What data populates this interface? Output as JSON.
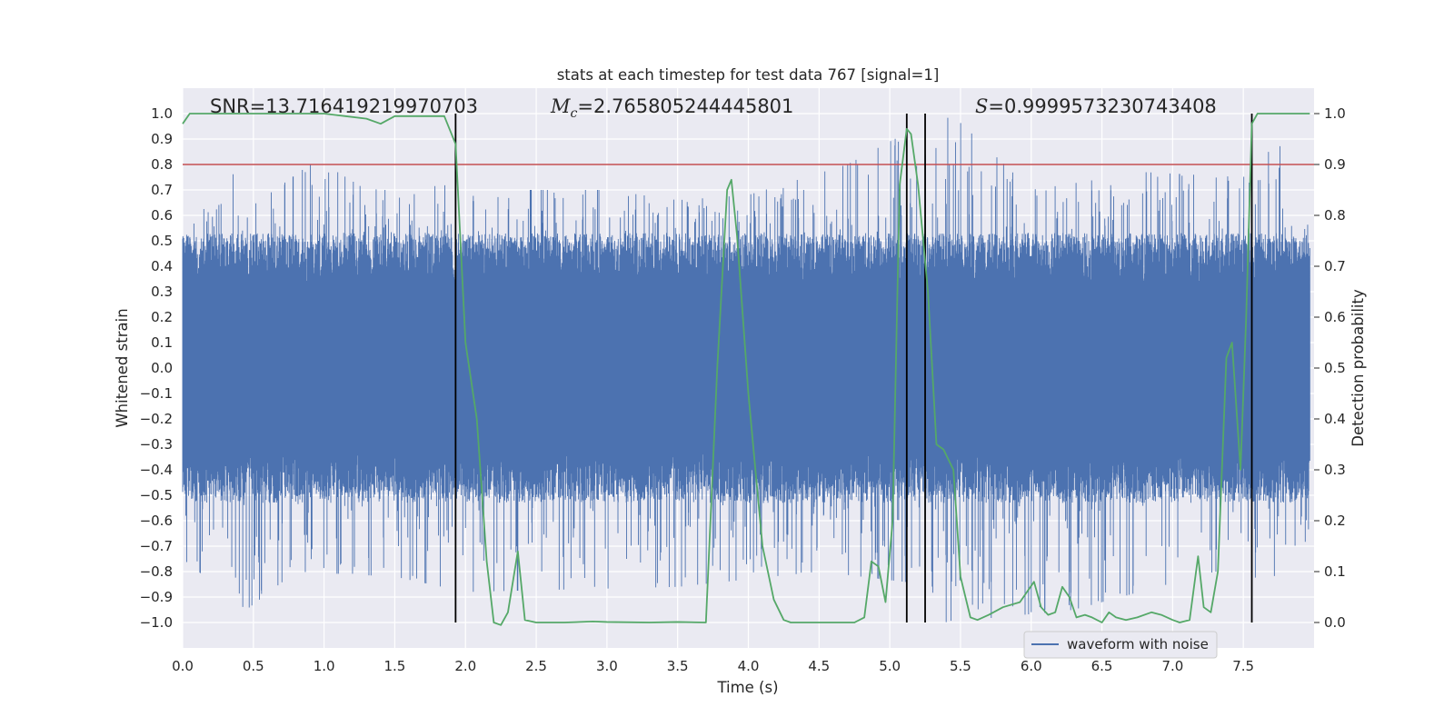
{
  "chart_data": {
    "type": "line",
    "title": "stats at each timestep for test data 767 [signal=1]",
    "xlabel": "Time (s)",
    "ylabel_left": "Whitened strain",
    "ylabel_right": "Detection probability",
    "xlim": [
      0.0,
      8.0
    ],
    "ylim_left": [
      -1.1,
      1.1
    ],
    "ylim_right": [
      -0.05,
      1.05
    ],
    "x_ticks": [
      "0.0",
      "0.5",
      "1.0",
      "1.5",
      "2.0",
      "2.5",
      "3.0",
      "3.5",
      "4.0",
      "4.5",
      "5.0",
      "5.5",
      "6.0",
      "6.5",
      "7.0",
      "7.5"
    ],
    "x_tick_values": [
      0,
      0.5,
      1,
      1.5,
      2,
      2.5,
      3,
      3.5,
      4,
      4.5,
      5,
      5.5,
      6,
      6.5,
      7,
      7.5
    ],
    "y_left_ticks": [
      "1.0",
      "0.9",
      "0.8",
      "0.7",
      "0.6",
      "0.5",
      "0.4",
      "0.3",
      "0.2",
      "0.1",
      "0.0",
      "−0.1",
      "−0.2",
      "−0.3",
      "−0.4",
      "−0.5",
      "−0.6",
      "−0.7",
      "−0.8",
      "−0.9",
      "−1.0"
    ],
    "y_left_tick_values": [
      1.0,
      0.9,
      0.8,
      0.7,
      0.6,
      0.5,
      0.4,
      0.3,
      0.2,
      0.1,
      0.0,
      -0.1,
      -0.2,
      -0.3,
      -0.4,
      -0.5,
      -0.6,
      -0.7,
      -0.8,
      -0.9,
      -1.0
    ],
    "y_right_ticks": [
      "1.0",
      "0.9",
      "0.8",
      "0.7",
      "0.6",
      "0.5",
      "0.4",
      "0.3",
      "0.2",
      "0.1",
      "0.0"
    ],
    "y_right_tick_values": [
      1.0,
      0.9,
      0.8,
      0.7,
      0.6,
      0.5,
      0.4,
      0.3,
      0.2,
      0.1,
      0.0
    ],
    "annotations": {
      "snr": "SNR=13.716419219970703",
      "mc_symbol": "M",
      "mc_sub": "c",
      "mc_value": "=2.765805244445801",
      "s_symbol": "S",
      "s_value": "=0.9999573230743408"
    },
    "legend": {
      "label": "waveform with noise",
      "placement": "lower-right"
    },
    "threshold": {
      "value_right": 0.9,
      "color": "#c44e52"
    },
    "vertical_markers_x": [
      1.93,
      5.12,
      5.25,
      7.56
    ],
    "series": [
      {
        "name": "waveform with noise",
        "color": "#4c72b0",
        "envelope_upper": [
          [
            0.0,
            0.6
          ],
          [
            0.3,
            0.65
          ],
          [
            0.32,
            0.9
          ],
          [
            0.45,
            0.62
          ],
          [
            0.95,
            0.82
          ],
          [
            1.3,
            0.7
          ],
          [
            1.9,
            0.72
          ],
          [
            2.05,
            0.7
          ],
          [
            3.0,
            0.7
          ],
          [
            3.5,
            0.66
          ],
          [
            4.0,
            0.68
          ],
          [
            4.7,
            0.8
          ],
          [
            5.2,
            0.95
          ],
          [
            5.45,
            0.99
          ],
          [
            6.0,
            0.7
          ],
          [
            6.8,
            0.77
          ],
          [
            7.5,
            0.75
          ],
          [
            7.75,
            0.89
          ],
          [
            7.9,
            0.6
          ],
          [
            7.97,
            0.6
          ]
        ],
        "envelope_lower": [
          [
            0.0,
            -0.75
          ],
          [
            0.45,
            -0.95
          ],
          [
            0.8,
            -0.8
          ],
          [
            1.5,
            -0.82
          ],
          [
            2.0,
            -0.88
          ],
          [
            3.5,
            -0.86
          ],
          [
            4.5,
            -0.8
          ],
          [
            5.25,
            -0.85
          ],
          [
            5.4,
            -1.0
          ],
          [
            6.3,
            -0.95
          ],
          [
            7.3,
            -0.8
          ],
          [
            7.9,
            -0.85
          ],
          [
            7.97,
            -0.6
          ]
        ]
      },
      {
        "name": "",
        "color": "#55a868",
        "axis": "right",
        "x": [
          0.0,
          0.05,
          0.2,
          0.5,
          1.0,
          1.3,
          1.4,
          1.5,
          1.7,
          1.85,
          1.93,
          2.0,
          2.08,
          2.15,
          2.2,
          2.25,
          2.3,
          2.37,
          2.42,
          2.5,
          2.7,
          2.9,
          3.0,
          3.3,
          3.5,
          3.7,
          3.78,
          3.85,
          3.88,
          3.92,
          4.0,
          4.1,
          4.18,
          4.25,
          4.3,
          4.5,
          4.75,
          4.82,
          4.87,
          4.92,
          4.97,
          5.02,
          5.07,
          5.12,
          5.15,
          5.2,
          5.27,
          5.33,
          5.38,
          5.45,
          5.5,
          5.57,
          5.62,
          5.7,
          5.8,
          5.92,
          6.02,
          6.07,
          6.12,
          6.17,
          6.22,
          6.27,
          6.32,
          6.38,
          6.43,
          6.5,
          6.55,
          6.6,
          6.67,
          6.75,
          6.85,
          6.92,
          7.0,
          7.05,
          7.12,
          7.18,
          7.22,
          7.27,
          7.32,
          7.38,
          7.42,
          7.48,
          7.52,
          7.56,
          7.6,
          7.65,
          7.72,
          7.97
        ],
        "y": [
          0.98,
          1.0,
          1.0,
          1.0,
          1.0,
          0.99,
          0.98,
          0.995,
          0.995,
          0.995,
          0.94,
          0.55,
          0.4,
          0.12,
          0.0,
          -0.005,
          0.02,
          0.14,
          0.005,
          0.0,
          0.0,
          0.002,
          0.001,
          0.0,
          0.001,
          0.0,
          0.5,
          0.85,
          0.87,
          0.76,
          0.45,
          0.15,
          0.045,
          0.005,
          0.0,
          0.0,
          0.0,
          0.01,
          0.12,
          0.11,
          0.04,
          0.2,
          0.86,
          0.97,
          0.96,
          0.86,
          0.65,
          0.35,
          0.34,
          0.3,
          0.09,
          0.01,
          0.005,
          0.015,
          0.03,
          0.04,
          0.08,
          0.03,
          0.015,
          0.02,
          0.07,
          0.05,
          0.01,
          0.015,
          0.01,
          0.0,
          0.02,
          0.01,
          0.005,
          0.01,
          0.02,
          0.015,
          0.005,
          0.0,
          0.005,
          0.13,
          0.03,
          0.02,
          0.1,
          0.52,
          0.55,
          0.3,
          0.6,
          0.98,
          1.0,
          1.0,
          1.0,
          1.0
        ]
      }
    ]
  }
}
